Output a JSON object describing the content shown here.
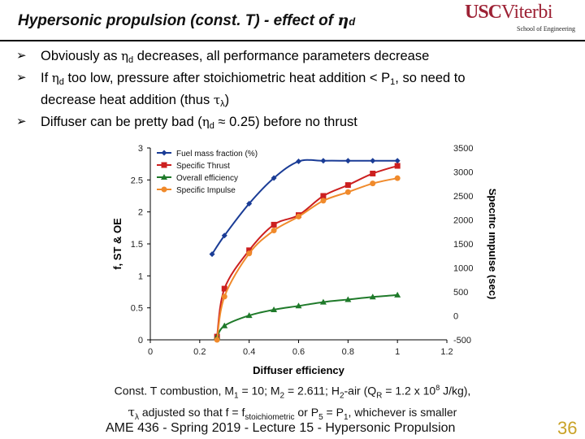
{
  "slide": {
    "title_main": "Hypersonic propulsion (const. T) - effect of ",
    "title_symbol": "η",
    "title_sub": "d",
    "logo": {
      "usc": "USC",
      "viterbi": "Viterbi",
      "school": "School of Engineering"
    },
    "bullet_marker": "➢",
    "bullets": [
      {
        "a": "Obviously as ",
        "sym": "η",
        "sub": "d",
        "b": " decreases, all performance parameters decrease"
      },
      {
        "a": "If ",
        "sym": "η",
        "sub": "d",
        "b": " too low, pressure after stoichiometric heat addition < P",
        "sub2": "1",
        "c": ", so need to"
      },
      {
        "a": "decrease heat addition (thus ",
        "sym": "τ",
        "sub": "λ",
        "b": ")"
      },
      {
        "a": "Diffuser can be pretty bad (",
        "sym": "η",
        "sub": "d",
        "b": " ≈ 0.25) before no thrust"
      }
    ],
    "caption": {
      "l1a": "Const. T combustion, M",
      "l1s1": "1",
      "l1b": " = 10; M",
      "l1s2": "2",
      "l1c": " = 2.611; H",
      "l1s3": "2",
      "l1d": "-air (Q",
      "l1s4": "R",
      "l1e": " = 1.2 x 10",
      "l1sup": "8",
      "l1f": " J/kg),",
      "l2sym": "τ",
      "l2s1": "λ",
      "l2a": " adjusted so that f = f",
      "l2s2": "stoichiometric",
      "l2b": " or P",
      "l2s3": "5",
      "l2c": " = P",
      "l2s4": "1",
      "l2d": ", whichever is smaller"
    },
    "footer": "AME 436 - Spring 2019 - Lecture 15 - Hypersonic Propulsion",
    "page_number": "36"
  },
  "chart_data": {
    "type": "line",
    "xlabel": "Diffuser efficiency",
    "ylabel": "f, ST & OE",
    "y2label": "Specific impulse (sec)",
    "xlim": [
      0,
      1.2
    ],
    "ylim": [
      0,
      3
    ],
    "y2lim": [
      -500,
      3500
    ],
    "xticks": [
      0,
      0.2,
      0.4,
      0.6,
      0.8,
      1,
      1.2
    ],
    "xtick_labels": [
      "0",
      "0.2",
      "0.4",
      "0.6",
      "0.8",
      "1",
      "1.2"
    ],
    "yticks": [
      0,
      0.5,
      1,
      1.5,
      2,
      2.5,
      3
    ],
    "ytick_labels": [
      "0",
      "0.5",
      "1",
      "1.5",
      "2",
      "2.5",
      "3"
    ],
    "y2ticks": [
      -500,
      0,
      500,
      1000,
      1500,
      2000,
      2500,
      3000,
      3500
    ],
    "y2tick_labels": [
      "-500",
      "0",
      "500",
      "1000",
      "1500",
      "2000",
      "2500",
      "3000",
      "3500"
    ],
    "legend_position": "top-left",
    "series": [
      {
        "name": "Fuel mass fraction (%)",
        "axis": "left",
        "color": "#1a3c96",
        "marker": "diamond",
        "x": [
          0.25,
          0.3,
          0.4,
          0.5,
          0.6,
          0.7,
          0.8,
          0.9,
          1.0
        ],
        "y": [
          1.34,
          1.63,
          2.13,
          2.53,
          2.79,
          2.8,
          2.8,
          2.8,
          2.8
        ]
      },
      {
        "name": "Specific Thrust",
        "axis": "left",
        "color": "#cc1f1f",
        "marker": "square",
        "x": [
          0.27,
          0.3,
          0.4,
          0.5,
          0.6,
          0.7,
          0.8,
          0.9,
          1.0
        ],
        "y": [
          0.05,
          0.8,
          1.4,
          1.8,
          1.95,
          2.25,
          2.42,
          2.6,
          2.72
        ]
      },
      {
        "name": "Overall efficiency",
        "axis": "left",
        "color": "#1f7a2a",
        "marker": "triangle",
        "x": [
          0.27,
          0.3,
          0.4,
          0.5,
          0.6,
          0.7,
          0.8,
          0.9,
          1.0
        ],
        "y": [
          0.05,
          0.22,
          0.38,
          0.47,
          0.53,
          0.59,
          0.63,
          0.67,
          0.7
        ]
      },
      {
        "name": "Specific Impulse",
        "axis": "right",
        "color": "#f08a2b",
        "marker": "circle",
        "x": [
          0.27,
          0.3,
          0.4,
          0.5,
          0.6,
          0.7,
          0.8,
          0.9,
          1.0
        ],
        "y": [
          -500,
          400,
          1300,
          1780,
          2070,
          2400,
          2580,
          2760,
          2870
        ]
      }
    ]
  }
}
